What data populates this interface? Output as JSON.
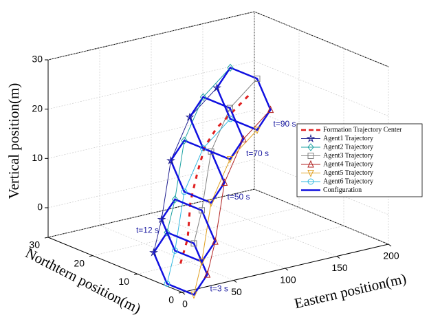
{
  "chart_data": {
    "type": "line3d",
    "xlabel": "Eastern position(m)",
    "ylabel": "Northtern position(m)",
    "zlabel": "Vertical position(m)",
    "xlim": [
      0,
      200
    ],
    "xticks": [
      0,
      50,
      100,
      150,
      200
    ],
    "ylim": [
      0,
      30
    ],
    "yticks": [
      0,
      10,
      20,
      30
    ],
    "zlim": [
      -6,
      30
    ],
    "zticks": [
      0,
      10,
      20,
      30
    ],
    "grid": true,
    "legend": "right",
    "center": {
      "name": "Formation Trajectory Center",
      "color": "#e02020",
      "x": [
        20,
        40,
        60,
        80,
        100,
        120,
        140,
        160
      ],
      "y": [
        5,
        8,
        12,
        15,
        18,
        20,
        21,
        22
      ],
      "z": [
        -3,
        0,
        5,
        9,
        12,
        14,
        16,
        18
      ]
    },
    "series": [
      {
        "name": "Agent1 Trajectory",
        "color": "#1f1f8f",
        "marker": "star",
        "x": [
          20,
          45,
          80,
          120,
          155
        ],
        "y": [
          11,
          15,
          21,
          26,
          28
        ],
        "z": [
          -3,
          1,
          9,
          14,
          17.5
        ]
      },
      {
        "name": "Agent2 Trajectory",
        "color": "#1aa0a0",
        "marker": "diamond",
        "x": [
          20,
          45,
          80,
          120,
          155
        ],
        "y": [
          8,
          12,
          18,
          23,
          25
        ],
        "z": [
          2.2,
          6.2,
          14.2,
          19.2,
          22.7
        ]
      },
      {
        "name": "Agent3 Trajectory",
        "color": "#808080",
        "marker": "square",
        "x": [
          20,
          45,
          80,
          120,
          155
        ],
        "y": [
          2,
          6,
          12,
          17,
          19
        ],
        "z": [
          2.2,
          6.2,
          14.2,
          19.2,
          22.7
        ]
      },
      {
        "name": "Agent4 Trajectory",
        "color": "#b02020",
        "marker": "triangle",
        "x": [
          20,
          45,
          80,
          120,
          155
        ],
        "y": [
          -1,
          3,
          9,
          14,
          16
        ],
        "z": [
          -3,
          1,
          9,
          14,
          17.5
        ]
      },
      {
        "name": "Agent5 Trajectory",
        "color": "#e0a020",
        "marker": "triangle-down",
        "x": [
          20,
          45,
          80,
          120,
          155
        ],
        "y": [
          2,
          6,
          12,
          17,
          19
        ],
        "z": [
          -8.2,
          -4.2,
          3.8,
          8.8,
          12.3
        ]
      },
      {
        "name": "Agent6 Trajectory",
        "color": "#30b8e0",
        "marker": "circle",
        "x": [
          20,
          45,
          80,
          120,
          155
        ],
        "y": [
          8,
          12,
          18,
          23,
          25
        ],
        "z": [
          -8.2,
          -4.2,
          3.8,
          8.8,
          12.3
        ]
      }
    ],
    "configuration": {
      "name": "Configuration",
      "color": "#1010e0",
      "times": [
        {
          "value": 3,
          "label": "t=3 s"
        },
        {
          "value": 12,
          "label": "t=12 s"
        },
        {
          "value": 50,
          "label": "t=50 s"
        },
        {
          "value": 70,
          "label": "t=70 s"
        },
        {
          "value": 90,
          "label": "t=90 s"
        }
      ]
    }
  }
}
